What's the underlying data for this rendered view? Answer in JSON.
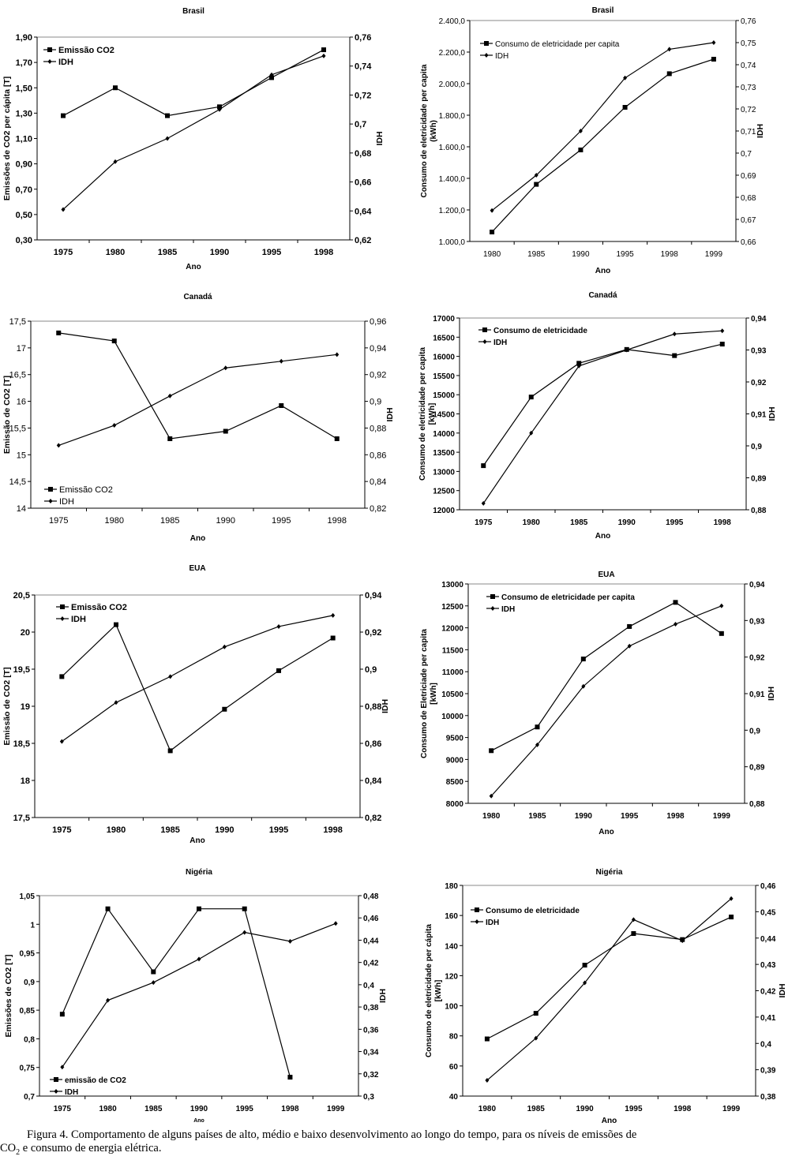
{
  "figure": {
    "caption_line1": "Figura 4. Comportamento de alguns países de alto, médio e baixo desenvolvimento ao longo do tempo, para os níveis de emissões de",
    "caption_co": "CO",
    "caption_sub": "2",
    "caption_rest": " e consumo de energia elétrica."
  },
  "chart_data": [
    {
      "id": "brasil-co2",
      "type": "line",
      "title": "Brasil",
      "xlabel": "Ano",
      "ylabel": "Emissões de  CO2 per cápita [T]",
      "y2label": "IDH",
      "categories": [
        "1975",
        "1980",
        "1985",
        "1990",
        "1995",
        "1998"
      ],
      "ylim": [
        0.3,
        1.9
      ],
      "yticks": [
        "0,30",
        "0,50",
        "0,70",
        "0,90",
        "1,10",
        "1,30",
        "1,50",
        "1,70",
        "1,90"
      ],
      "y2lim": [
        0.62,
        0.76
      ],
      "y2ticks": [
        "0,62",
        "0,64",
        "0,66",
        "0,68",
        "0,7",
        "0,72",
        "0,74",
        "0,76"
      ],
      "legend_position": "top-left",
      "grid": false,
      "series": [
        {
          "name": "Emissão CO2",
          "axis": "left",
          "marker": "square",
          "values": [
            1.28,
            1.5,
            1.28,
            1.35,
            1.58,
            1.8
          ]
        },
        {
          "name": "IDH",
          "axis": "right",
          "marker": "diamond",
          "values": [
            0.641,
            0.674,
            0.69,
            0.71,
            0.734,
            0.747
          ]
        }
      ]
    },
    {
      "id": "brasil-elec",
      "type": "line",
      "title": "Brasil",
      "xlabel": "Ano",
      "ylabel": "Consumo de eletricidade per capita (kWh)",
      "ylabel_lines": [
        "Consumo de eletricidade per capita",
        "(kWh)"
      ],
      "y2label": "IDH",
      "categories": [
        "1980",
        "1985",
        "1990",
        "1995",
        "1998",
        "1999"
      ],
      "ylim": [
        1000,
        2400
      ],
      "yticks": [
        "1.000,0",
        "1.200,0",
        "1.400,0",
        "1.600,0",
        "1.800,0",
        "2.000,0",
        "2.200,0",
        "2.400,0"
      ],
      "y2lim": [
        0.66,
        0.76
      ],
      "y2ticks": [
        "0,66",
        "0,67",
        "0,68",
        "0,69",
        "0,7",
        "0,71",
        "0,72",
        "0,73",
        "0,74",
        "0,75",
        "0,76"
      ],
      "legend_position": "top-left",
      "grid": false,
      "series": [
        {
          "name": "Consumo de eletricidade per capita",
          "axis": "left",
          "marker": "square",
          "values": [
            1060,
            1362,
            1580,
            1850,
            2063,
            2155
          ]
        },
        {
          "name": "IDH",
          "axis": "right",
          "marker": "diamond",
          "values": [
            0.674,
            0.69,
            0.71,
            0.734,
            0.747,
            0.75
          ]
        }
      ]
    },
    {
      "id": "canada-co2",
      "type": "line",
      "title": "Canadá",
      "xlabel": "Ano",
      "ylabel": "Emissão de CO2 [T]",
      "y2label": "IDH",
      "categories": [
        "1975",
        "1980",
        "1985",
        "1990",
        "1995",
        "1998"
      ],
      "ylim": [
        14,
        17.5
      ],
      "yticks": [
        "14",
        "14,5",
        "15",
        "15,5",
        "16",
        "16,5",
        "17",
        "17,5"
      ],
      "y2lim": [
        0.82,
        0.96
      ],
      "y2ticks": [
        "0,82",
        "0,84",
        "0,86",
        "0,88",
        "0,9",
        "0,92",
        "0,94",
        "0,96"
      ],
      "legend_position": "bottom-left",
      "grid": false,
      "series": [
        {
          "name": "Emissão CO2",
          "axis": "left",
          "marker": "square",
          "values": [
            17.28,
            17.13,
            15.3,
            15.44,
            15.92,
            15.3
          ]
        },
        {
          "name": "IDH",
          "axis": "right",
          "marker": "diamond",
          "values": [
            0.867,
            0.882,
            0.904,
            0.925,
            0.93,
            0.935
          ]
        }
      ]
    },
    {
      "id": "canada-elec",
      "type": "line",
      "title": "Canadá",
      "xlabel": "Ano",
      "ylabel": "Consumo de eletricidade per capita [kWh]",
      "ylabel_lines": [
        "Consumo de eletricidade per capita",
        "[kWh]"
      ],
      "y2label": "IDH",
      "categories": [
        "1975",
        "1980",
        "1985",
        "1990",
        "1995",
        "1998"
      ],
      "ylim": [
        12000,
        17000
      ],
      "yticks": [
        "12000",
        "12500",
        "13000",
        "13500",
        "14000",
        "14500",
        "15000",
        "15500",
        "16000",
        "16500",
        "17000"
      ],
      "y2lim": [
        0.88,
        0.94
      ],
      "y2ticks": [
        "0,88",
        "0,89",
        "0,9",
        "0,91",
        "0,92",
        "0,93",
        "0,94"
      ],
      "legend_position": "top-left",
      "grid": false,
      "series": [
        {
          "name": "Consumo de eletricidade",
          "axis": "left",
          "marker": "square",
          "values": [
            13150,
            14940,
            15820,
            16180,
            16020,
            16320
          ]
        },
        {
          "name": "IDH",
          "axis": "right",
          "marker": "diamond",
          "values": [
            0.882,
            0.904,
            0.925,
            0.93,
            0.935,
            0.936
          ]
        }
      ]
    },
    {
      "id": "eua-co2",
      "type": "line",
      "title": "EUA",
      "xlabel": "Ano",
      "ylabel": "Emissão de CO2 [T]",
      "y2label": "IDH",
      "categories": [
        "1975",
        "1980",
        "1985",
        "1990",
        "1995",
        "1998"
      ],
      "ylim": [
        17.5,
        20.5
      ],
      "yticks": [
        "17,5",
        "18",
        "18,5",
        "19",
        "19,5",
        "20",
        "20,5"
      ],
      "y2lim": [
        0.82,
        0.94
      ],
      "y2ticks": [
        "0,82",
        "0,84",
        "0,86",
        "0,88",
        "0,9",
        "0,92",
        "0,94"
      ],
      "legend_position": "top-left",
      "grid": false,
      "series": [
        {
          "name": "Emissão CO2",
          "axis": "left",
          "marker": "square",
          "values": [
            19.4,
            20.1,
            18.4,
            18.96,
            19.48,
            19.92
          ]
        },
        {
          "name": "IDH",
          "axis": "right",
          "marker": "diamond",
          "values": [
            0.861,
            0.882,
            0.896,
            0.912,
            0.923,
            0.929
          ]
        }
      ]
    },
    {
      "id": "eua-elec",
      "type": "line",
      "title": "EUA",
      "xlabel": "Ano",
      "ylabel": "Consumo de Eletriciade per capita [kWh]",
      "ylabel_lines": [
        "Consumo de Eletriciade per capita",
        "[kWh]"
      ],
      "y2label": "IDH",
      "categories": [
        "1980",
        "1985",
        "1990",
        "1995",
        "1998",
        "1999"
      ],
      "ylim": [
        8000,
        13000
      ],
      "yticks": [
        "8000",
        "8500",
        "9000",
        "9500",
        "10000",
        "10500",
        "11000",
        "11500",
        "12000",
        "12500",
        "13000"
      ],
      "y2lim": [
        0.88,
        0.94
      ],
      "y2ticks": [
        "0,88",
        "0,89",
        "0,9",
        "0,91",
        "0,92",
        "0,93",
        "0,94"
      ],
      "legend_position": "top-left",
      "grid": false,
      "series": [
        {
          "name": "Consumo de eletricidade per capita",
          "axis": "left",
          "marker": "square",
          "values": [
            9200,
            9740,
            11290,
            12030,
            12580,
            11870
          ]
        },
        {
          "name": "IDH",
          "axis": "right",
          "marker": "diamond",
          "values": [
            0.882,
            0.896,
            0.912,
            0.923,
            0.929,
            0.934
          ]
        }
      ]
    },
    {
      "id": "nigeria-co2",
      "type": "line",
      "title": "Nigéria",
      "xlabel": "Ano",
      "ylabel": "Emissões de CO2 [T]",
      "y2label": "IDH",
      "categories": [
        "1975",
        "1980",
        "1985",
        "1990",
        "1995",
        "1998",
        "1999"
      ],
      "ylim": [
        0.7,
        1.05
      ],
      "yticks": [
        "0,7",
        "0,75",
        "0,8",
        "0,85",
        "0,9",
        "0,95",
        "1",
        "1,05"
      ],
      "y2lim": [
        0.3,
        0.48
      ],
      "y2ticks": [
        "0,3",
        "0,32",
        "0,34",
        "0,36",
        "0,38",
        "0,4",
        "0,42",
        "0,44",
        "0,46",
        "0,48"
      ],
      "legend_position": "bottom-left",
      "grid": false,
      "series": [
        {
          "name": "emissão de CO2",
          "axis": "left",
          "marker": "square",
          "values": [
            0.843,
            1.027,
            0.917,
            1.027,
            1.027,
            0.733,
            null
          ]
        },
        {
          "name": "IDH",
          "axis": "right",
          "marker": "diamond",
          "values": [
            0.326,
            0.386,
            0.402,
            0.423,
            0.447,
            0.439,
            0.455
          ]
        }
      ]
    },
    {
      "id": "nigeria-elec",
      "type": "line",
      "title": "Nigéria",
      "xlabel": "Ano",
      "ylabel": "Consumo de eletricidade per cápita [kWh]",
      "ylabel_lines": [
        "Consumo de eletricidade per cápita",
        "[kWh]"
      ],
      "y2label": "IDH",
      "categories": [
        "1980",
        "1985",
        "1990",
        "1995",
        "1998",
        "1999"
      ],
      "ylim": [
        40,
        180
      ],
      "yticks": [
        "40",
        "60",
        "80",
        "100",
        "120",
        "140",
        "160",
        "180"
      ],
      "y2lim": [
        0.38,
        0.46
      ],
      "y2ticks": [
        "0,38",
        "0,39",
        "0,4",
        "0,41",
        "0,42",
        "0,43",
        "0,44",
        "0,45",
        "0,46"
      ],
      "legend_position": "top-left",
      "grid": false,
      "series": [
        {
          "name": "Consumo de eletricidade",
          "axis": "left",
          "marker": "square",
          "values": [
            78,
            95,
            127,
            148,
            144,
            159
          ]
        },
        {
          "name": "IDH",
          "axis": "right",
          "marker": "diamond",
          "values": [
            0.386,
            0.402,
            0.423,
            0.447,
            0.439,
            0.455
          ]
        }
      ]
    }
  ]
}
